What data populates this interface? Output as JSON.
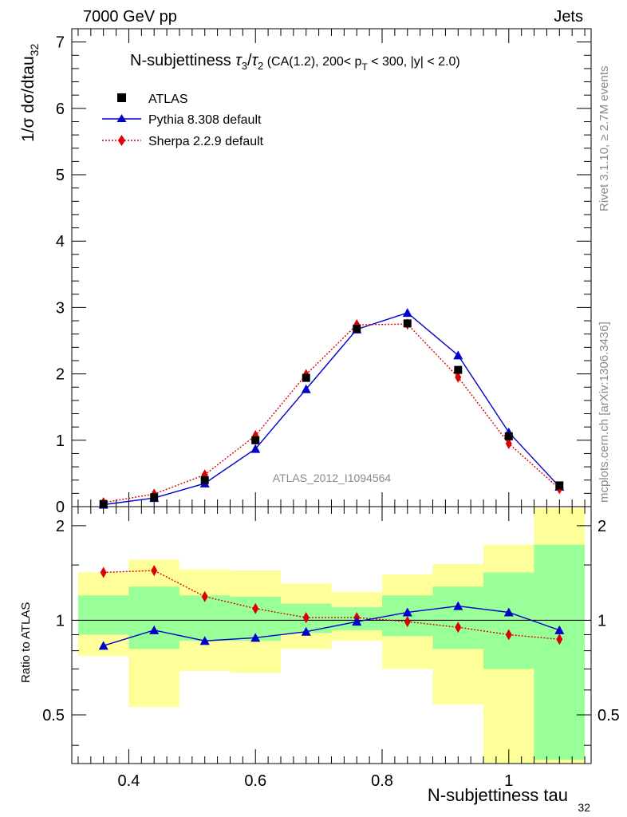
{
  "header": {
    "energy_label": "7000 GeV pp",
    "process_label": "Jets"
  },
  "side_labels": {
    "rivet": "Rivet 3.1.10, ≥ 2.7M events",
    "mcplots": "mcplots.cern.ch [arXiv:1306.3436]"
  },
  "chart_data": [
    {
      "type": "scatter",
      "title": "N-subjettiness τ3/τ2 (CA(1.2), 200< pT < 300, |y| < 2.0)",
      "watermark": "ATLAS_2012_I1094564",
      "ylabel": "1/σ dσ/dtau32",
      "xlim": [
        0.31,
        1.13
      ],
      "ylim": [
        0,
        7.2
      ],
      "yticks": [
        0,
        1,
        2,
        3,
        4,
        5,
        6,
        7
      ],
      "x": [
        0.36,
        0.44,
        0.52,
        0.6,
        0.68,
        0.76,
        0.84,
        0.92,
        1.0,
        1.08
      ],
      "legend_placement": "top-left",
      "series": [
        {
          "name": "ATLAS",
          "marker": "square",
          "color": "#000000",
          "values": [
            0.04,
            0.14,
            0.4,
            1.0,
            1.94,
            2.68,
            2.76,
            2.06,
            1.06,
            0.32
          ]
        },
        {
          "name": "Pythia 8.308 default",
          "marker": "triangle",
          "color": "#0000cc",
          "line": "solid",
          "values": [
            0.03,
            0.13,
            0.35,
            0.87,
            1.77,
            2.67,
            2.92,
            2.28,
            1.12,
            0.3
          ]
        },
        {
          "name": "Sherpa 2.2.9 default",
          "marker": "diamond",
          "color": "#dd0000",
          "line": "dotted",
          "values": [
            0.06,
            0.19,
            0.48,
            1.07,
            1.99,
            2.74,
            2.75,
            1.95,
            0.95,
            0.27
          ]
        }
      ]
    },
    {
      "type": "scatter",
      "ylabel": "Ratio to ATLAS",
      "xlabel": "N-subjettiness tau",
      "xlabel_sub": "32",
      "xlim": [
        0.31,
        1.13
      ],
      "ylim": [
        0.35,
        2.3
      ],
      "log_y": true,
      "xticks": [
        0.4,
        0.6,
        0.8,
        1.0
      ],
      "xtick_labels": [
        "0.4",
        "0.6",
        "0.8",
        "1"
      ],
      "yticks": [
        0.5,
        1,
        2
      ],
      "ytick_labels": [
        "0.5",
        "1",
        "2"
      ],
      "reference_line": 1,
      "bins": [
        {
          "lo": 0.32,
          "hi": 0.4,
          "stat": [
            0.9,
            1.2
          ],
          "total": [
            0.77,
            1.42
          ]
        },
        {
          "lo": 0.4,
          "hi": 0.48,
          "stat": [
            0.81,
            1.28
          ],
          "total": [
            0.53,
            1.56
          ]
        },
        {
          "lo": 0.48,
          "hi": 0.56,
          "stat": [
            0.86,
            1.2
          ],
          "total": [
            0.69,
            1.45
          ]
        },
        {
          "lo": 0.56,
          "hi": 0.64,
          "stat": [
            0.86,
            1.19
          ],
          "total": [
            0.68,
            1.44
          ]
        },
        {
          "lo": 0.64,
          "hi": 0.72,
          "stat": [
            0.91,
            1.13
          ],
          "total": [
            0.81,
            1.31
          ]
        },
        {
          "lo": 0.72,
          "hi": 0.8,
          "stat": [
            0.93,
            1.1
          ],
          "total": [
            0.86,
            1.23
          ]
        },
        {
          "lo": 0.8,
          "hi": 0.88,
          "stat": [
            0.89,
            1.2
          ],
          "total": [
            0.7,
            1.4
          ]
        },
        {
          "lo": 0.88,
          "hi": 0.96,
          "stat": [
            0.81,
            1.28
          ],
          "total": [
            0.54,
            1.51
          ]
        },
        {
          "lo": 0.96,
          "hi": 1.04,
          "stat": [
            0.7,
            1.42
          ],
          "total": [
            0.35,
            1.74
          ]
        },
        {
          "lo": 1.04,
          "hi": 1.12,
          "stat": [
            0.36,
            1.74
          ],
          "total": [
            0.35,
            2.28
          ]
        }
      ],
      "band_colors": {
        "stat": "#99ff99",
        "total": "#ffff99"
      },
      "series": [
        {
          "name": "Pythia 8.308 default",
          "marker": "triangle",
          "color": "#0000cc",
          "line": "solid",
          "values": [
            0.83,
            0.93,
            0.86,
            0.88,
            0.92,
            0.99,
            1.06,
            1.11,
            1.06,
            0.93
          ]
        },
        {
          "name": "Sherpa 2.2.9 default",
          "marker": "diamond",
          "color": "#dd0000",
          "line": "dotted",
          "values": [
            1.42,
            1.44,
            1.19,
            1.09,
            1.02,
            1.02,
            0.99,
            0.95,
            0.9,
            0.87
          ]
        }
      ]
    }
  ]
}
